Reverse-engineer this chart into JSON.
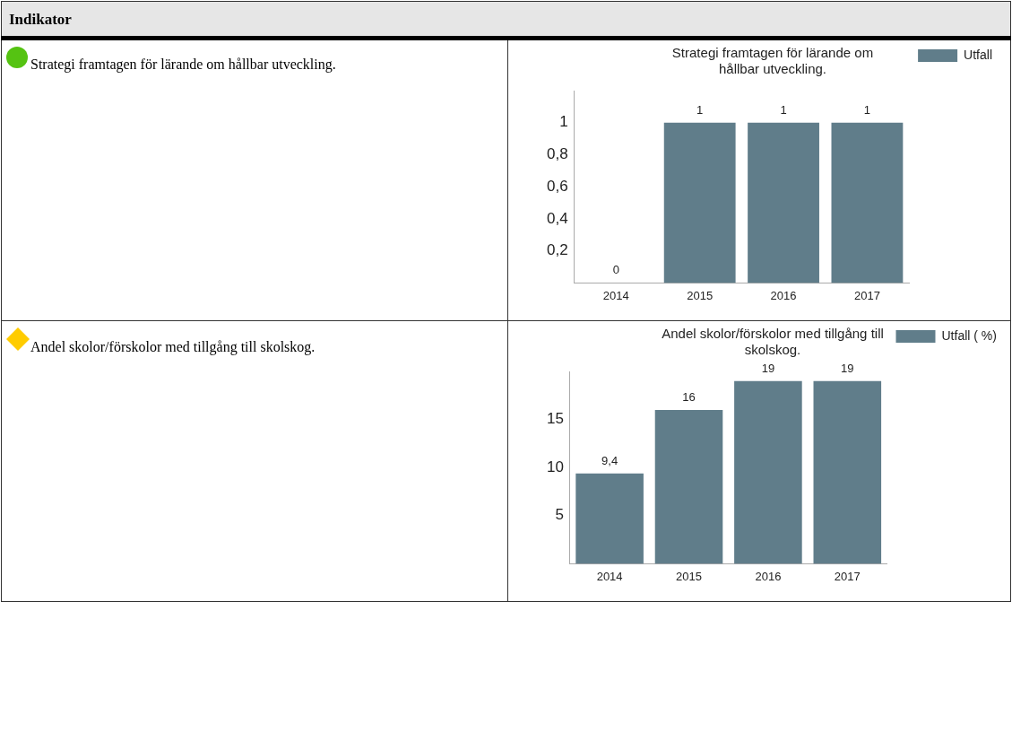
{
  "chart_data": [
    {
      "type": "other",
      "title": "Indikator"
    },
    {
      "type": "bar",
      "title": "Strategi framtagen för lärande om hållbar utveckling.",
      "annotations": [
        "Strategi framtagen för lärande om hållbar utveckling."
      ],
      "categories": [
        "2014",
        "2015",
        "2016",
        "2017"
      ],
      "series": [
        {
          "name": "Utfall",
          "color": "#607d8a",
          "values": [
            0,
            1,
            1,
            1
          ],
          "value_labels": [
            "0",
            "1",
            "1",
            "1"
          ]
        }
      ],
      "ylim": [
        0,
        1.2
      ],
      "yticks": [
        {
          "value": 0.2,
          "label": "0,2"
        },
        {
          "value": 0.4,
          "label": "0,4"
        },
        {
          "value": 0.6,
          "label": "0,6"
        },
        {
          "value": 0.8,
          "label": "0,8"
        },
        {
          "value": 1,
          "label": "1"
        }
      ],
      "legend": "top right"
    },
    {
      "type": "bar",
      "title": "Andel skolor/förskolor med tillgång till skolskog.",
      "annotations": [
        "Andel skolor/förskolor med tillgång till skolskog."
      ],
      "categories": [
        "2014",
        "2015",
        "2016",
        "2017"
      ],
      "series": [
        {
          "name": "Utfall ( %)",
          "color": "#607d8a",
          "values": [
            9.4,
            16,
            19,
            19
          ],
          "value_labels": [
            "9,4",
            "16",
            "19",
            "19"
          ]
        }
      ],
      "ylim": [
        0,
        20
      ],
      "yticks": [
        5,
        10,
        15
      ],
      "legend": "top right"
    }
  ]
}
